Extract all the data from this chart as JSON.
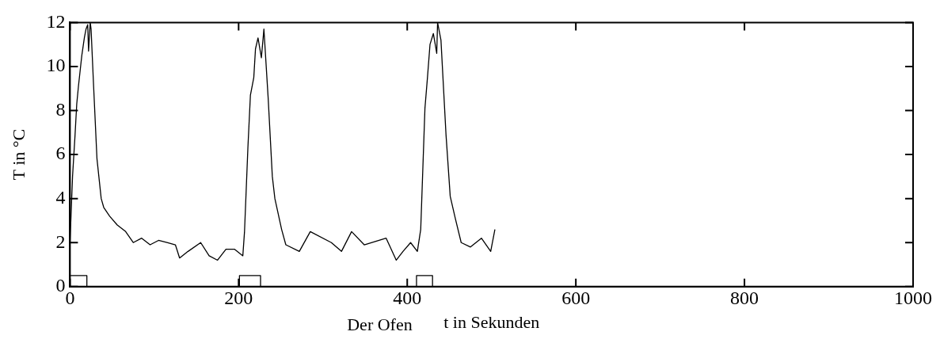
{
  "chart_data": {
    "type": "line",
    "xlabel": "t in Sekunden",
    "ylabel": "T in °C",
    "annotations": [
      "Der Ofen"
    ],
    "xlim": [
      0,
      1000
    ],
    "xticks": [
      0,
      200,
      400,
      600,
      800,
      1000
    ],
    "ylim": [
      0,
      12
    ],
    "yticks": [
      0,
      2,
      4,
      6,
      8,
      10,
      12
    ],
    "grid": false,
    "legend": false,
    "marker": "none",
    "line_style": "solid",
    "series": [
      {
        "type": "line",
        "color": "#000000",
        "x": [
          0,
          3,
          6,
          8,
          10,
          12,
          14,
          17,
          19,
          21,
          22,
          24,
          25,
          28,
          32,
          37,
          40,
          47,
          56,
          66,
          75,
          85,
          95,
          105,
          115,
          125,
          130,
          140,
          155,
          165,
          175,
          185,
          195,
          205,
          207,
          211,
          214,
          218,
          220,
          223,
          227,
          230,
          235,
          240,
          243,
          251,
          256,
          272,
          285,
          310,
          322,
          334,
          349,
          375,
          387,
          395,
          404,
          412,
          416,
          421,
          424,
          427,
          431,
          435,
          436,
          440,
          446,
          451,
          457,
          464,
          475,
          488,
          499,
          504
        ],
        "values": [
          2.0,
          5.0,
          6.9,
          8.3,
          9.1,
          9.8,
          10.5,
          11.3,
          11.7,
          11.9,
          10.7,
          12.0,
          11.7,
          9.1,
          5.8,
          4.0,
          3.6,
          3.2,
          2.8,
          2.5,
          2.0,
          2.2,
          1.9,
          2.1,
          2.0,
          1.9,
          1.3,
          1.6,
          2.0,
          1.4,
          1.2,
          1.7,
          1.7,
          1.4,
          2.5,
          6.3,
          8.7,
          9.5,
          10.8,
          11.3,
          10.4,
          11.7,
          8.6,
          5.0,
          4.0,
          2.6,
          1.9,
          1.6,
          2.5,
          2.0,
          1.6,
          2.5,
          1.9,
          2.2,
          1.2,
          1.6,
          2.0,
          1.6,
          2.6,
          8.1,
          9.5,
          11.0,
          11.5,
          10.6,
          12.0,
          11.2,
          6.9,
          4.1,
          3.1,
          2.0,
          1.8,
          2.2,
          1.6,
          2.6
        ]
      },
      {
        "type": "step",
        "color": "#000000",
        "x": [
          0,
          20,
          201,
          226,
          411,
          430
        ],
        "values": [
          0.5,
          0,
          0.5,
          0,
          0.5,
          0
        ]
      }
    ]
  }
}
